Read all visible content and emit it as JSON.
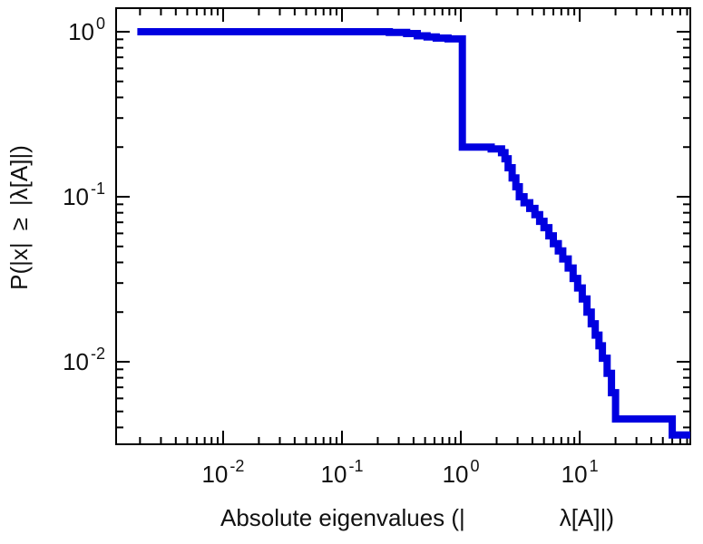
{
  "chart_data": {
    "type": "line",
    "subtype": "step-ccdf",
    "title": "",
    "xlabel": "Absolute eigenvalues (|    λ[A]|)",
    "ylabel": "P(|x| ≥ |λ[A]|)",
    "log_x": true,
    "log_y": true,
    "x_range_log10": [
      -2.9,
      1.93
    ],
    "y_range_log10": [
      -2.5,
      0.143
    ],
    "grid": false,
    "legend": "none",
    "line_color": "#0000e0",
    "line_width": 8,
    "frame_color": "#000000",
    "x_ticks": [
      {
        "v": 0.01,
        "base": "10",
        "exp": "-2"
      },
      {
        "v": 0.1,
        "base": "10",
        "exp": "-1"
      },
      {
        "v": 1,
        "base": "10",
        "exp": "0"
      },
      {
        "v": 10,
        "base": "10",
        "exp": "1"
      }
    ],
    "y_ticks": [
      {
        "v": 1,
        "base": "10",
        "exp": "0"
      },
      {
        "v": 0.1,
        "base": "10",
        "exp": "-1"
      },
      {
        "v": 0.01,
        "base": "10",
        "exp": "-2"
      }
    ],
    "points": [
      [
        0.0019,
        1.0
      ],
      [
        0.25,
        0.99
      ],
      [
        0.35,
        0.975
      ],
      [
        0.43,
        0.945
      ],
      [
        0.52,
        0.93
      ],
      [
        0.62,
        0.915
      ],
      [
        0.78,
        0.905
      ],
      [
        1.03,
        0.2
      ],
      [
        1.8,
        0.195
      ],
      [
        2.2,
        0.185
      ],
      [
        2.35,
        0.17
      ],
      [
        2.5,
        0.15
      ],
      [
        2.7,
        0.13
      ],
      [
        2.9,
        0.115
      ],
      [
        3.1,
        0.1
      ],
      [
        3.4,
        0.092
      ],
      [
        3.8,
        0.085
      ],
      [
        4.2,
        0.078
      ],
      [
        4.6,
        0.071
      ],
      [
        5.0,
        0.065
      ],
      [
        5.5,
        0.058
      ],
      [
        6.0,
        0.052
      ],
      [
        6.6,
        0.047
      ],
      [
        7.2,
        0.042
      ],
      [
        8.0,
        0.037
      ],
      [
        8.8,
        0.032
      ],
      [
        9.6,
        0.028
      ],
      [
        10.5,
        0.024
      ],
      [
        11.5,
        0.02
      ],
      [
        12.5,
        0.017
      ],
      [
        13.5,
        0.0145
      ],
      [
        14.5,
        0.0125
      ],
      [
        15.5,
        0.0105
      ],
      [
        17.0,
        0.0085
      ],
      [
        18.5,
        0.0065
      ],
      [
        20.0,
        0.0045
      ],
      [
        60.0,
        0.0036
      ]
    ]
  }
}
